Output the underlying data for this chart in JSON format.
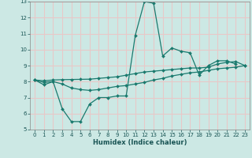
{
  "title": "",
  "xlabel": "Humidex (Indice chaleur)",
  "bg_color": "#cce8e4",
  "grid_color": "#e8c8c8",
  "line_color": "#1a7a6e",
  "xlim": [
    -0.5,
    23.5
  ],
  "ylim": [
    5,
    13
  ],
  "yticks": [
    5,
    6,
    7,
    8,
    9,
    10,
    11,
    12,
    13
  ],
  "xticks": [
    0,
    1,
    2,
    3,
    4,
    5,
    6,
    7,
    8,
    9,
    10,
    11,
    12,
    13,
    14,
    15,
    16,
    17,
    18,
    19,
    20,
    21,
    22,
    23
  ],
  "line1_x": [
    0,
    1,
    2,
    3,
    4,
    5,
    6,
    7,
    8,
    9,
    10,
    11,
    12,
    13,
    14,
    15,
    16,
    17,
    18,
    19,
    20,
    21,
    22
  ],
  "line1_y": [
    8.1,
    7.8,
    8.0,
    6.3,
    5.5,
    5.5,
    6.6,
    7.0,
    7.0,
    7.1,
    7.1,
    10.9,
    13.0,
    12.9,
    9.6,
    10.1,
    9.9,
    9.8,
    8.4,
    9.0,
    9.3,
    9.3,
    9.1
  ],
  "line2_x": [
    0,
    1,
    2,
    3,
    4,
    5,
    6,
    7,
    8,
    9,
    10,
    11,
    12,
    13,
    14,
    15,
    16,
    17,
    18,
    19,
    20,
    21,
    22,
    23
  ],
  "line2_y": [
    8.1,
    8.05,
    8.1,
    8.12,
    8.13,
    8.14,
    8.15,
    8.2,
    8.25,
    8.3,
    8.4,
    8.5,
    8.6,
    8.65,
    8.7,
    8.75,
    8.8,
    8.85,
    8.85,
    8.9,
    9.1,
    9.2,
    9.25,
    9.0
  ],
  "line3_x": [
    0,
    1,
    2,
    3,
    4,
    5,
    6,
    7,
    8,
    9,
    10,
    11,
    12,
    13,
    14,
    15,
    16,
    17,
    18,
    19,
    20,
    21,
    22,
    23
  ],
  "line3_y": [
    8.1,
    7.95,
    8.0,
    7.85,
    7.6,
    7.5,
    7.45,
    7.5,
    7.6,
    7.7,
    7.75,
    7.85,
    7.95,
    8.1,
    8.2,
    8.35,
    8.45,
    8.55,
    8.6,
    8.7,
    8.8,
    8.85,
    8.9,
    9.0
  ]
}
